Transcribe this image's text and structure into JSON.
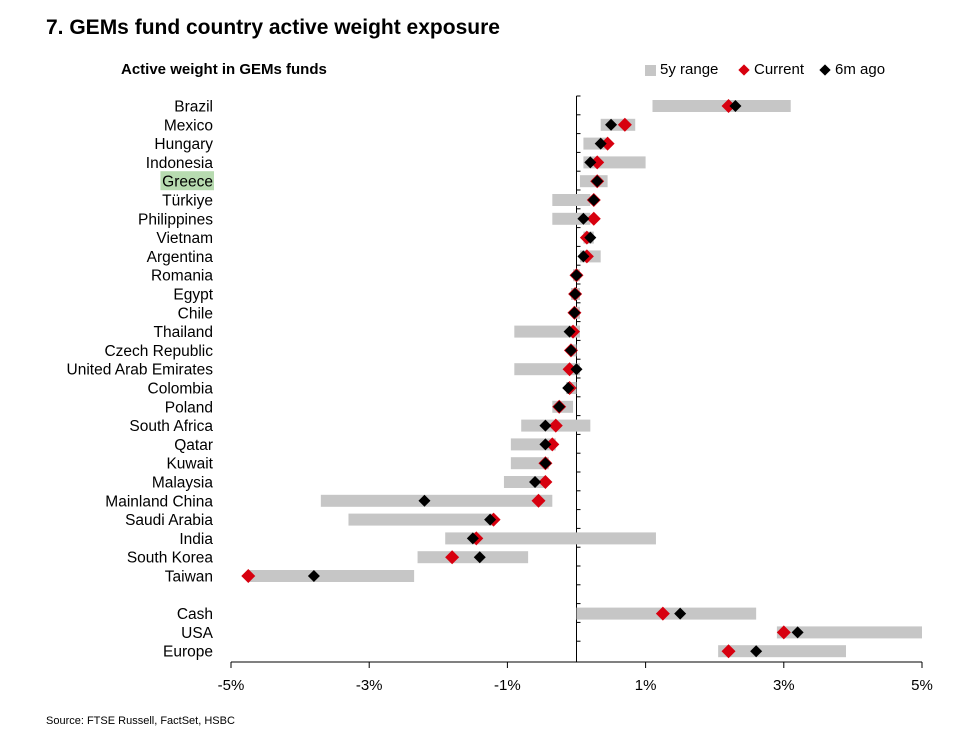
{
  "title": "7. GEMs fund country active weight exposure",
  "subtitle": "Active weight in GEMs funds",
  "source": "Source: FTSE Russell, FactSet, HSBC",
  "legend": {
    "range": "5y range",
    "current": "Current",
    "prior": "6m ago"
  },
  "colors": {
    "range": "#c6c6c6",
    "current": "#d7000f",
    "prior": "#000000",
    "highlight": "#b7dbb0"
  },
  "chart_data": {
    "type": "range-dot",
    "xlim": [
      -5,
      5
    ],
    "xticks": [
      -5,
      -3,
      -1,
      1,
      3,
      5
    ],
    "xtick_labels": [
      "-5%",
      "-3%",
      "-1%",
      "1%",
      "3%",
      "5%"
    ],
    "highlight_category": "Greece",
    "groups": [
      {
        "rows": [
          {
            "label": "Brazil",
            "min": 1.1,
            "max": 3.1,
            "current": 2.2,
            "prior": 2.3
          },
          {
            "label": "Mexico",
            "min": 0.35,
            "max": 0.85,
            "current": 0.7,
            "prior": 0.5
          },
          {
            "label": "Hungary",
            "min": 0.1,
            "max": 0.45,
            "current": 0.45,
            "prior": 0.35
          },
          {
            "label": "Indonesia",
            "min": 0.1,
            "max": 1.0,
            "current": 0.3,
            "prior": 0.2
          },
          {
            "label": "Greece",
            "min": 0.05,
            "max": 0.45,
            "current": 0.3,
            "prior": 0.3
          },
          {
            "label": "Türkiye",
            "min": -0.35,
            "max": 0.2,
            "current": 0.25,
            "prior": 0.25
          },
          {
            "label": "Philippines",
            "min": -0.35,
            "max": 0.2,
            "current": 0.25,
            "prior": 0.1
          },
          {
            "label": "Vietnam",
            "min": 0.1,
            "max": 0.25,
            "current": 0.15,
            "prior": 0.2
          },
          {
            "label": "Argentina",
            "min": 0.05,
            "max": 0.35,
            "current": 0.15,
            "prior": 0.1
          },
          {
            "label": "Romania",
            "min": -0.05,
            "max": 0.05,
            "current": 0.0,
            "prior": 0.0
          },
          {
            "label": "Egypt",
            "min": -0.08,
            "max": 0.05,
            "current": -0.02,
            "prior": -0.02
          },
          {
            "label": "Chile",
            "min": -0.05,
            "max": 0.05,
            "current": -0.03,
            "prior": -0.03
          },
          {
            "label": "Thailand",
            "min": -0.9,
            "max": 0.05,
            "current": -0.05,
            "prior": -0.1
          },
          {
            "label": "Czech Republic",
            "min": -0.1,
            "max": 0.0,
            "current": -0.08,
            "prior": -0.08
          },
          {
            "label": "United Arab Emirates",
            "min": -0.9,
            "max": 0.05,
            "current": -0.1,
            "prior": 0.0
          },
          {
            "label": "Colombia",
            "min": -0.15,
            "max": 0.0,
            "current": -0.1,
            "prior": -0.12
          },
          {
            "label": "Poland",
            "min": -0.35,
            "max": -0.05,
            "current": -0.25,
            "prior": -0.25
          },
          {
            "label": "South Africa",
            "min": -0.8,
            "max": 0.2,
            "current": -0.3,
            "prior": -0.45
          },
          {
            "label": "Qatar",
            "min": -0.95,
            "max": -0.3,
            "current": -0.35,
            "prior": -0.45
          },
          {
            "label": "Kuwait",
            "min": -0.95,
            "max": -0.4,
            "current": -0.45,
            "prior": -0.45
          },
          {
            "label": "Malaysia",
            "min": -1.05,
            "max": -0.45,
            "current": -0.45,
            "prior": -0.6
          },
          {
            "label": "Mainland China",
            "min": -3.7,
            "max": -0.35,
            "current": -0.55,
            "prior": -2.2
          },
          {
            "label": "Saudi Arabia",
            "min": -3.3,
            "max": -1.2,
            "current": -1.2,
            "prior": -1.25
          },
          {
            "label": "India",
            "min": -1.9,
            "max": 1.15,
            "current": -1.45,
            "prior": -1.5
          },
          {
            "label": "South Korea",
            "min": -2.3,
            "max": -0.7,
            "current": -1.8,
            "prior": -1.4
          },
          {
            "label": "Taiwan",
            "min": -4.75,
            "max": -2.35,
            "current": -4.75,
            "prior": -3.8
          }
        ]
      },
      {
        "rows": [
          {
            "label": "Cash",
            "min": 0.0,
            "max": 2.6,
            "current": 1.25,
            "prior": 1.5
          },
          {
            "label": "USA",
            "min": 2.9,
            "max": 5.0,
            "current": 3.0,
            "prior": 3.2
          },
          {
            "label": "Europe",
            "min": 2.05,
            "max": 3.9,
            "current": 2.2,
            "prior": 2.6
          }
        ]
      }
    ]
  }
}
